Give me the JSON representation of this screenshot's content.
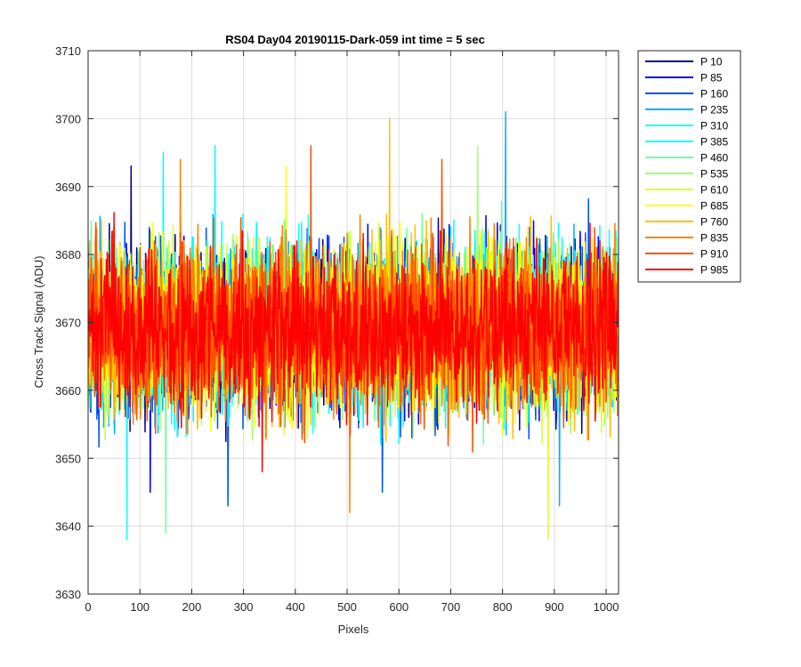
{
  "chart_data": {
    "type": "line",
    "title": "RS04 Day04 20190115-Dark-059 int time = 5 sec",
    "xlabel": "Pixels",
    "ylabel": "Cross Track Signal (ADU)",
    "xlim": [
      0,
      1024
    ],
    "ylim": [
      3630,
      3710
    ],
    "xticks": [
      0,
      100,
      200,
      300,
      400,
      500,
      600,
      700,
      800,
      900,
      1000
    ],
    "yticks": [
      3630,
      3640,
      3650,
      3660,
      3670,
      3680,
      3690,
      3700,
      3710
    ],
    "grid": true,
    "legend_position": "outside-right-top",
    "points_per_series": 1024,
    "series": [
      {
        "name": "P 10",
        "color": "#00008F",
        "mean": 3669,
        "spread": 9.5,
        "extremes": [
          [
            83,
            3693
          ]
        ]
      },
      {
        "name": "P 85",
        "color": "#0000EF",
        "mean": 3669,
        "spread": 9.5,
        "extremes": [
          [
            120,
            3645
          ]
        ]
      },
      {
        "name": "P 160",
        "color": "#0050FF",
        "mean": 3669,
        "spread": 9.5,
        "extremes": [
          [
            270,
            3643
          ],
          [
            568,
            3645
          ]
        ]
      },
      {
        "name": "P 235",
        "color": "#00AFFF",
        "mean": 3669,
        "spread": 9.5,
        "extremes": [
          [
            806,
            3701
          ],
          [
            910,
            3643
          ]
        ]
      },
      {
        "name": "P 310",
        "color": "#0FFFFF",
        "mean": 3669,
        "spread": 9.5,
        "extremes": [
          [
            75,
            3638
          ]
        ]
      },
      {
        "name": "P 385",
        "color": "#00FFFF",
        "mean": 3669,
        "spread": 9.5,
        "extremes": [
          [
            145,
            3695
          ],
          [
            245,
            3696
          ]
        ]
      },
      {
        "name": "P 460",
        "color": "#6FFF9F",
        "mean": 3669,
        "spread": 9.5,
        "extremes": [
          [
            150,
            3639
          ]
        ]
      },
      {
        "name": "P 535",
        "color": "#9FFF6F",
        "mean": 3669,
        "spread": 9.5,
        "extremes": [
          [
            752,
            3696
          ]
        ]
      },
      {
        "name": "P 610",
        "color": "#DFFF20",
        "mean": 3669,
        "spread": 9.5,
        "extremes": [
          [
            888,
            3638
          ]
        ]
      },
      {
        "name": "P 685",
        "color": "#FFFF00",
        "mean": 3669,
        "spread": 9.5,
        "extremes": [
          [
            382,
            3693
          ]
        ]
      },
      {
        "name": "P 760",
        "color": "#FFBF00",
        "mean": 3669,
        "spread": 9.5,
        "extremes": [
          [
            582,
            3700
          ]
        ]
      },
      {
        "name": "P 835",
        "color": "#FF8000",
        "mean": 3669,
        "spread": 9.5,
        "extremes": [
          [
            505,
            3642
          ],
          [
            178,
            3694
          ]
        ]
      },
      {
        "name": "P 910",
        "color": "#FF5000",
        "mean": 3669,
        "spread": 9.5,
        "extremes": [
          [
            430,
            3696
          ],
          [
            683,
            3694
          ]
        ]
      },
      {
        "name": "P 985",
        "color": "#FF0000",
        "mean": 3669,
        "spread": 9.5,
        "extremes": [
          [
            336,
            3648
          ]
        ]
      }
    ]
  }
}
